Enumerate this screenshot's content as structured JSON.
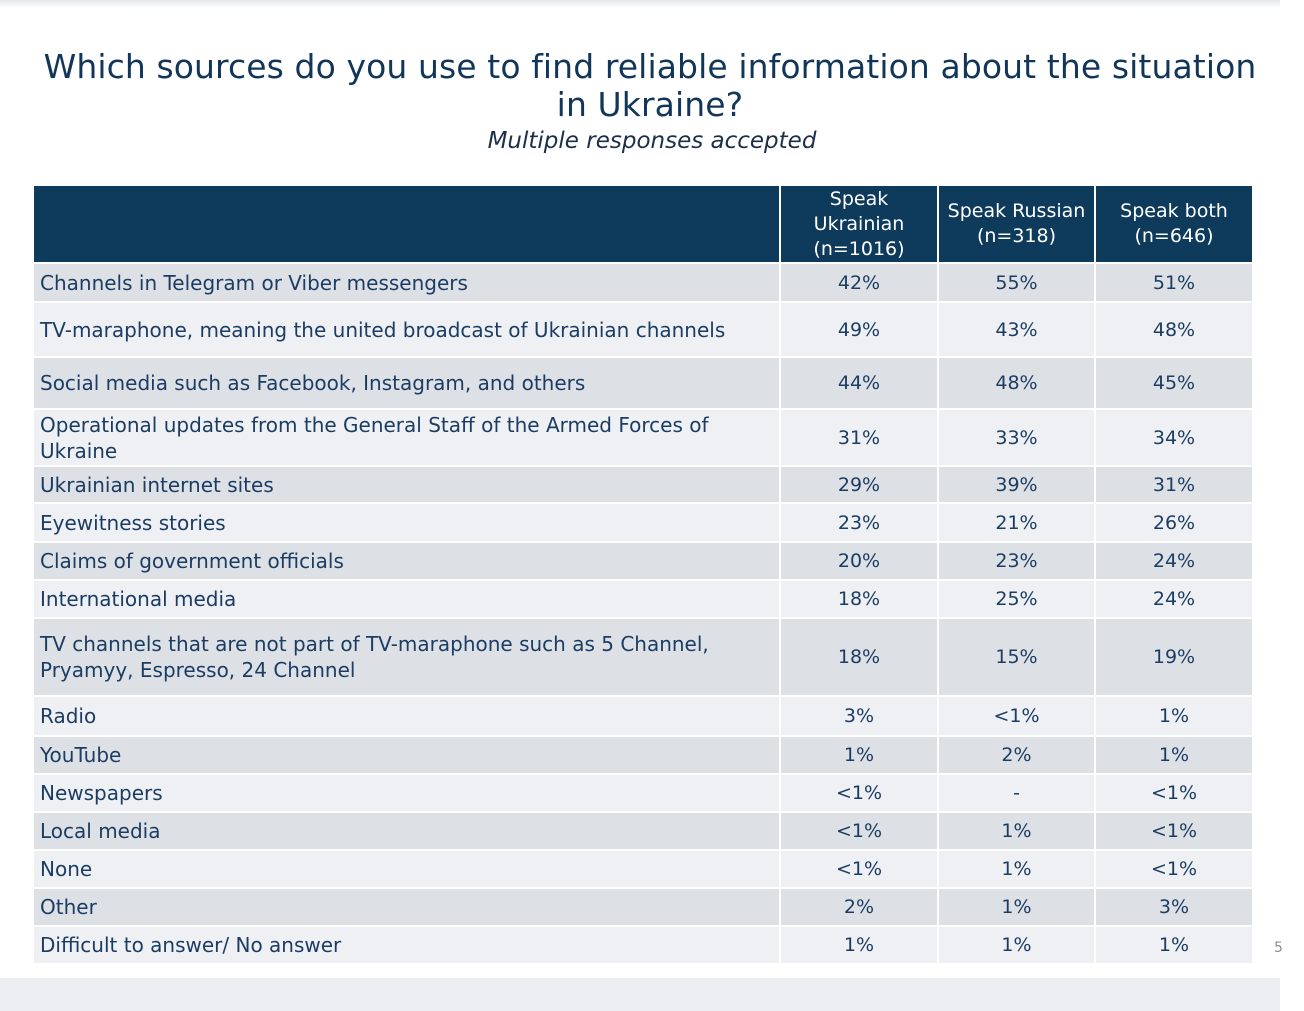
{
  "title_line1": "Which sources do you use to find reliable information about the situation",
  "title_line2": "in Ukraine?",
  "subtitle": "Multiple responses accepted",
  "columns": [
    {
      "line1": "Speak",
      "line2": "Ukrainian",
      "line3": "(n=1016)"
    },
    {
      "line1": "Speak Russian",
      "line2": "(n=318)"
    },
    {
      "line1": "Speak both",
      "line2": "(n=646)"
    }
  ],
  "rows": [
    {
      "label": "Channels in Telegram or Viber messengers",
      "values": [
        "42%",
        "55%",
        "51%"
      ]
    },
    {
      "label": "TV-maraphone, meaning the united broadcast of Ukrainian channels",
      "values": [
        "49%",
        "43%",
        "48%"
      ]
    },
    {
      "label": "Social media such as Facebook, Instagram, and others",
      "values": [
        "44%",
        "48%",
        "45%"
      ]
    },
    {
      "label": "Operational updates from the General Staff of the Armed Forces of Ukraine",
      "values": [
        "31%",
        "33%",
        "34%"
      ]
    },
    {
      "label": "Ukrainian internet sites",
      "values": [
        "29%",
        "39%",
        "31%"
      ]
    },
    {
      "label": "Eyewitness stories",
      "values": [
        "23%",
        "21%",
        "26%"
      ]
    },
    {
      "label": "Claims of government officials",
      "values": [
        "20%",
        "23%",
        "24%"
      ]
    },
    {
      "label": "International media",
      "values": [
        "18%",
        "25%",
        "24%"
      ]
    },
    {
      "label": "TV channels that are not part of TV-maraphone such as 5 Channel, Pryamyy, Espresso, 24 Channel",
      "values": [
        "18%",
        "15%",
        "19%"
      ]
    },
    {
      "label": "Radio",
      "values": [
        "3%",
        "<1%",
        "1%"
      ]
    },
    {
      "label": "YouTube",
      "values": [
        "1%",
        "2%",
        "1%"
      ]
    },
    {
      "label": "Newspapers",
      "values": [
        "<1%",
        "-",
        "<1%"
      ]
    },
    {
      "label": "Local media",
      "values": [
        "<1%",
        "1%",
        "<1%"
      ]
    },
    {
      "label": "None",
      "values": [
        "<1%",
        "1%",
        "<1%"
      ]
    },
    {
      "label": "Other",
      "values": [
        "2%",
        "1%",
        "3%"
      ]
    },
    {
      "label": "Difficult to answer/ No answer",
      "values": [
        "1%",
        "1%",
        "1%"
      ]
    }
  ],
  "edge_mark": "5"
}
